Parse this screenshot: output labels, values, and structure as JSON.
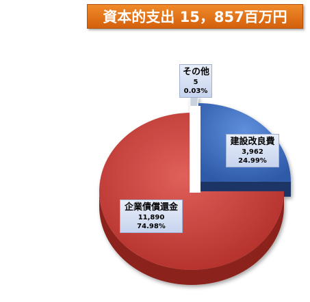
{
  "title": "資本的支出 15，857百万円",
  "chart_data": {
    "type": "pie",
    "title": "資本的支出 15，857百万円",
    "total": 15857,
    "slices": [
      {
        "label": "建設改良費",
        "value": 3962,
        "value_text": "3,962",
        "percent_text": "24.99%",
        "color": "#3f72c8",
        "exploded": true
      },
      {
        "label": "企業債償還金",
        "value": 11890,
        "value_text": "11,890",
        "percent_text": "74.98%",
        "color": "#d0403a",
        "exploded": false
      },
      {
        "label": "その他",
        "value": 5,
        "value_text": "5",
        "percent_text": "0.03%",
        "color": "#9aa8b8",
        "exploded": true
      }
    ]
  }
}
